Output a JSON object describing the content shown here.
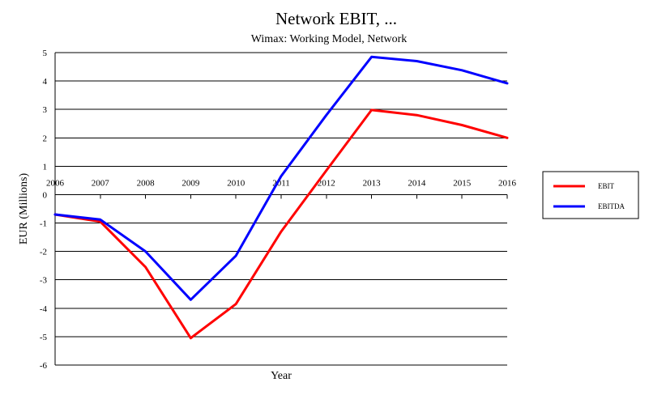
{
  "chart_data": {
    "type": "line",
    "title": "Network EBIT, ...",
    "subtitle": "Wimax: Working Model, Network",
    "xlabel": "Year",
    "ylabel": "EUR  (Millions)",
    "x": [
      "2006",
      "2007",
      "2008",
      "2009",
      "2010",
      "2011",
      "2012",
      "2013",
      "2014",
      "2015",
      "2016"
    ],
    "ylim": [
      -6,
      5
    ],
    "yticks": [
      5,
      4,
      3,
      2,
      1,
      0,
      -1,
      -2,
      -3,
      -4,
      -5,
      -6
    ],
    "grid": true,
    "legend_position": "right",
    "series": [
      {
        "name": "EBIT",
        "color": "#ff0000",
        "values": [
          -0.7,
          -0.95,
          -2.55,
          -5.05,
          -3.85,
          -1.3,
          0.85,
          2.98,
          2.8,
          2.45,
          2.0
        ]
      },
      {
        "name": "EBITDA",
        "color": "#0000ff",
        "values": [
          -0.7,
          -0.88,
          -2.0,
          -3.7,
          -2.15,
          0.65,
          2.8,
          4.85,
          4.7,
          4.38,
          3.92
        ]
      }
    ]
  }
}
